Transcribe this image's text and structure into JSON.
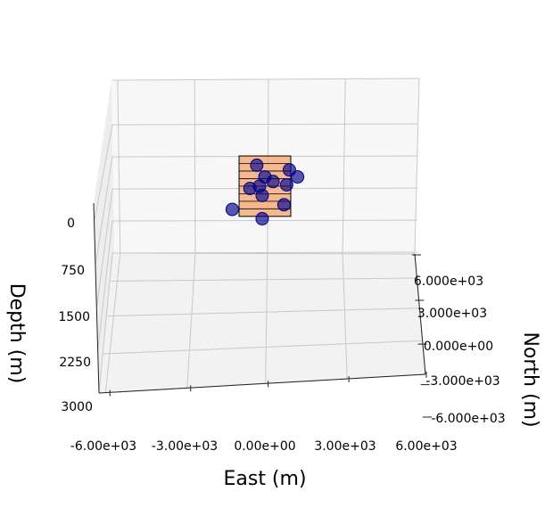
{
  "chart_data": {
    "type": "scatter",
    "projection": "3d",
    "xlabel": "East (m)",
    "ylabel": "North (m)",
    "zlabel": "Depth (m)",
    "xlim": [
      -6000,
      6000
    ],
    "ylim": [
      -6000,
      6000
    ],
    "zlim": [
      0,
      3000
    ],
    "z_inverted": true,
    "x_ticks": [
      "-6.00e+03",
      "-3.00e+03",
      "0.00e+00",
      "3.00e+03",
      "6.00e+03"
    ],
    "y_ticks": [
      "-6.000e+03",
      "-3.000e+03",
      "0.000e+00",
      "3.000e+03",
      "6.000e+03"
    ],
    "z_ticks": [
      "0",
      "750",
      "1500",
      "2250",
      "3000"
    ],
    "grid": true,
    "pane_color": "#f2f2f2",
    "marker_color": "#00008b",
    "box_color": "#f4a46a",
    "box_edge_color": "#000000",
    "stack_layers": 8,
    "points": [
      {
        "x": -300,
        "z": 200
      },
      {
        "x": 900,
        "z": 300
      },
      {
        "x": 1200,
        "z": 450
      },
      {
        "x": 0,
        "z": 450
      },
      {
        "x": 300,
        "z": 550
      },
      {
        "x": 800,
        "z": 620
      },
      {
        "x": -200,
        "z": 650
      },
      {
        "x": -550,
        "z": 700
      },
      {
        "x": -100,
        "z": 850
      },
      {
        "x": 700,
        "z": 1050
      },
      {
        "x": -1200,
        "z": 1150
      },
      {
        "x": -100,
        "z": 1350
      }
    ]
  }
}
